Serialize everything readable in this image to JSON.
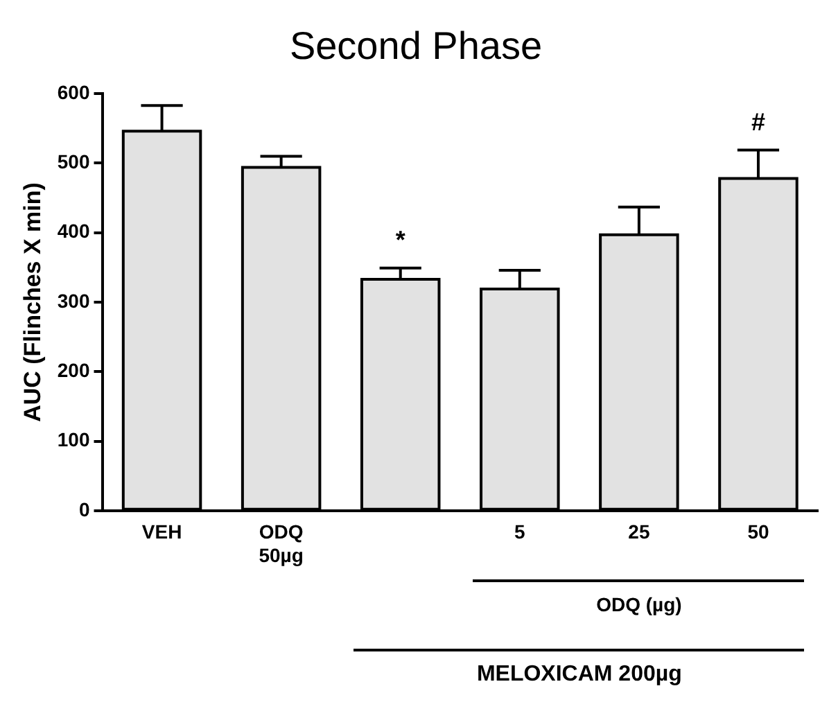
{
  "chart_data": {
    "type": "bar",
    "title": "Second Phase",
    "ylabel": "AUC (Flinches X min)",
    "categories": [
      "VEH",
      "ODQ\n50µg",
      null,
      "5",
      "25",
      "50"
    ],
    "values": [
      546,
      494,
      333,
      319,
      397,
      478
    ],
    "errors": [
      [
        546,
        583
      ],
      [
        494,
        510
      ],
      [
        333,
        349
      ],
      [
        319,
        346
      ],
      [
        397,
        437
      ],
      [
        478,
        519
      ]
    ],
    "color": "#e2e2e2",
    "ylim": [
      0,
      600
    ],
    "yticks": [
      0,
      100,
      200,
      300,
      400,
      500,
      600
    ],
    "grid": false,
    "legend": false,
    "annotations": [
      "*",
      "#",
      "ODQ (µg)",
      "MELOXICAM 200µg"
    ]
  }
}
